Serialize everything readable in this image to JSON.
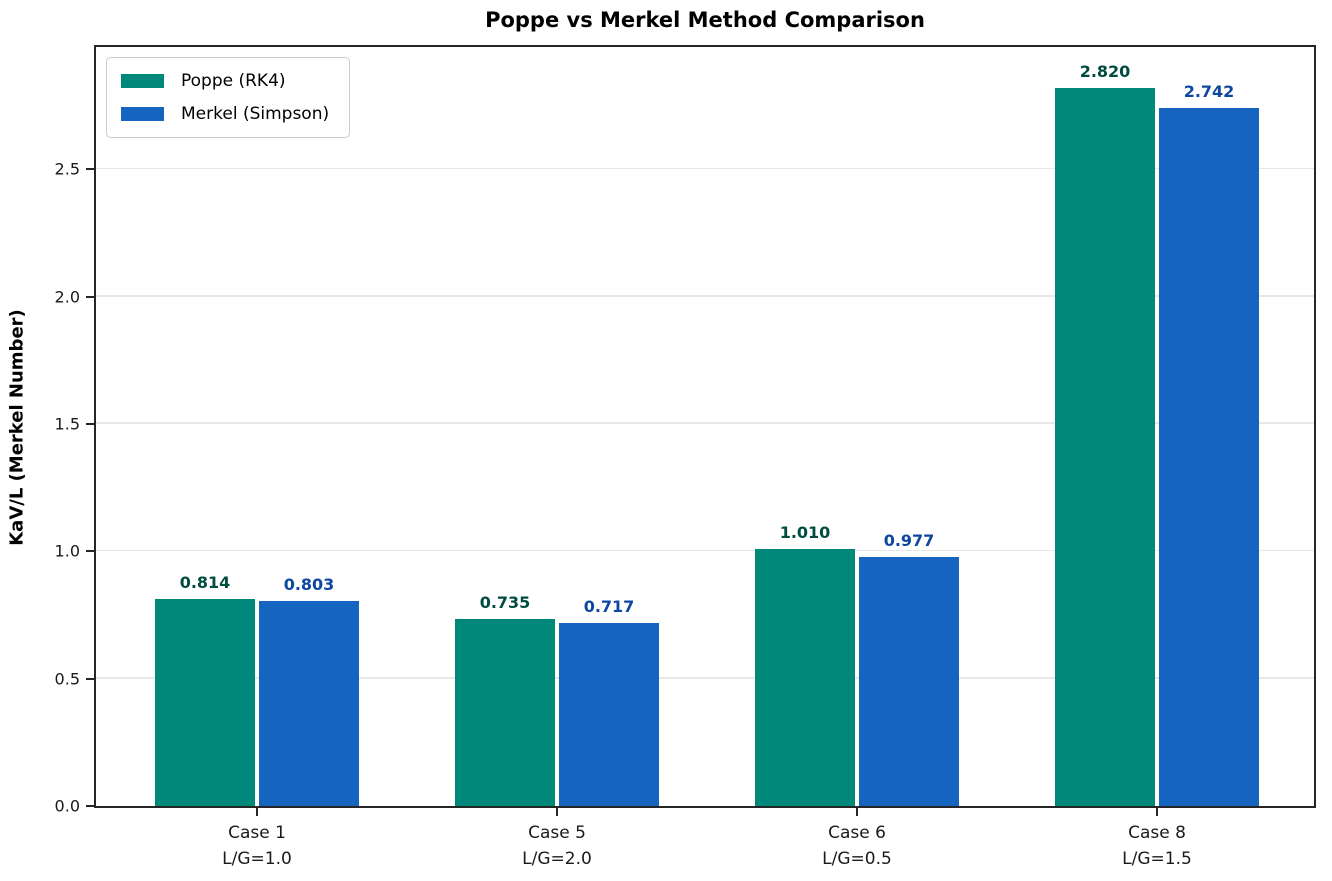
{
  "chart_data": {
    "type": "bar",
    "title": "Poppe vs Merkel Method Comparison",
    "ylabel": "KaV/L (Merkel Number)",
    "xlabel": "",
    "categories": [
      {
        "name": "Case 1",
        "sub": "L/G=1.0"
      },
      {
        "name": "Case 5",
        "sub": "L/G=2.0"
      },
      {
        "name": "Case 6",
        "sub": "L/G=0.5"
      },
      {
        "name": "Case 8",
        "sub": "L/G=1.5"
      }
    ],
    "series": [
      {
        "name": "Poppe (RK4)",
        "color": "#00897B",
        "label_color": "#004D40",
        "values": [
          0.814,
          0.735,
          1.01,
          2.82
        ],
        "labels": [
          "0.814",
          "0.735",
          "1.010",
          "2.820"
        ]
      },
      {
        "name": "Merkel (Simpson)",
        "color": "#1565C0",
        "label_color": "#0D47A1",
        "values": [
          0.803,
          0.717,
          0.977,
          2.742
        ],
        "labels": [
          "0.803",
          "0.717",
          "0.977",
          "2.742"
        ]
      }
    ],
    "yticks": [
      "0.0",
      "0.5",
      "1.0",
      "1.5",
      "2.0",
      "2.5"
    ],
    "ylim": [
      0,
      2.98
    ],
    "grid": "horizontal",
    "grid_color": "#e8e8e8",
    "legend_position": "upper-left"
  }
}
